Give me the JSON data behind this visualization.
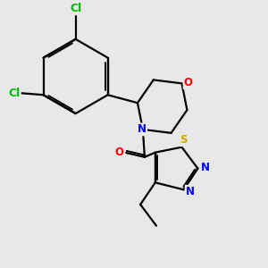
{
  "bg_color": "#e8e8e8",
  "bond_color": "#000000",
  "line_width": 1.6,
  "atom_colors": {
    "Cl": "#00bb00",
    "O": "#ff0000",
    "N": "#0000ff",
    "S": "#ccaa00",
    "C": "#000000"
  },
  "font_size_atom": 8.5
}
